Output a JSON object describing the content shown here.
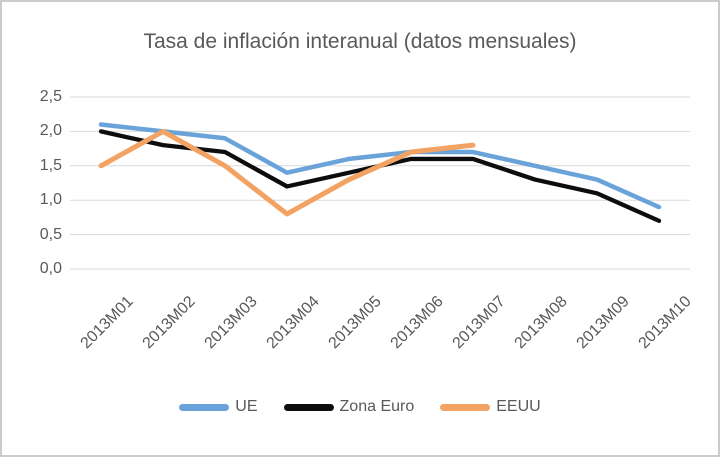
{
  "chart_data": {
    "type": "line",
    "title": "Tasa de inflación interanual (datos mensuales)",
    "categories": [
      "2013M01",
      "2013M02",
      "2013M03",
      "2013M04",
      "2013M05",
      "2013M06",
      "2013M07",
      "2013M08",
      "2013M09",
      "2013M10"
    ],
    "series": [
      {
        "name": "UE",
        "color": "#69a3d9",
        "values": [
          2.1,
          2.0,
          1.9,
          1.4,
          1.6,
          1.7,
          1.7,
          1.5,
          1.3,
          0.9
        ]
      },
      {
        "name": "Zona Euro",
        "color": "#0d0d0d",
        "values": [
          2.0,
          1.8,
          1.7,
          1.2,
          1.4,
          1.6,
          1.6,
          1.3,
          1.1,
          0.7
        ]
      },
      {
        "name": "EEUU",
        "color": "#f2a262",
        "values": [
          1.5,
          2.0,
          1.5,
          0.8,
          1.3,
          1.7,
          1.8,
          null,
          null,
          null
        ]
      }
    ],
    "ylim": [
      0,
      2.5
    ],
    "ytick_step": 0.5,
    "ytick_labels": [
      "0,0",
      "0,5",
      "1,0",
      "1,5",
      "2,0",
      "2,5"
    ],
    "xlabel": "",
    "ylabel": "",
    "grid": true,
    "gridline_color": "#d9d9d9",
    "legend_position": "bottom",
    "text_color": "#595959"
  }
}
